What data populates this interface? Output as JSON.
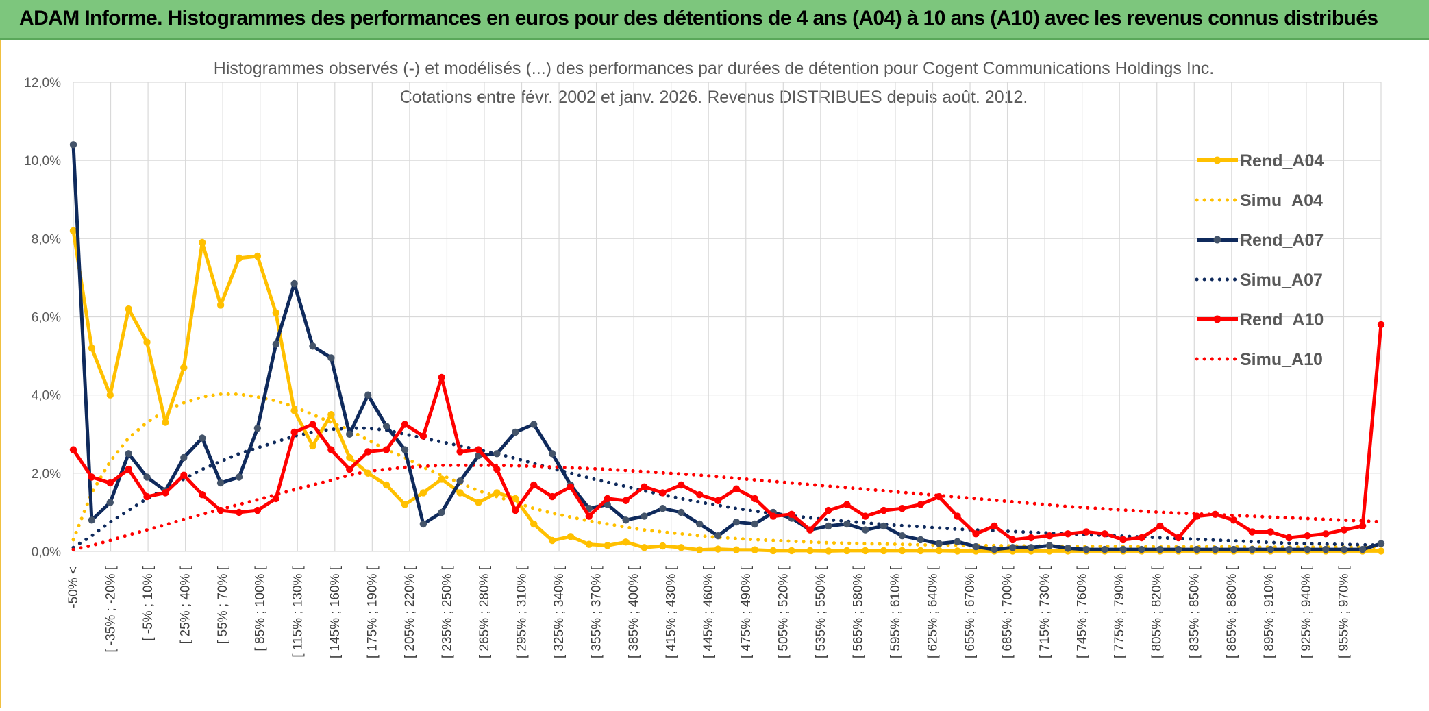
{
  "header": {
    "title": "ADAM Informe. Histogrammes des performances en euros pour des détentions de 4 ans (A04) à 10 ans (A10) avec les revenus connus distribués"
  },
  "chart_data": {
    "type": "line",
    "title": "Histogrammes observés (-) et modélisés (...) des performances par durées de détention pour Cogent Communications Holdings Inc.",
    "subtitle": "Cotations entre févr. 2002 et janv. 2026. Revenus DISTRIBUES depuis août. 2012.",
    "xlabel": "",
    "ylabel": "",
    "ylim": [
      0,
      12
    ],
    "y_ticks": [
      "0,0%",
      "2,0%",
      "4,0%",
      "6,0%",
      "8,0%",
      "10,0%",
      "12,0%"
    ],
    "legend_position": "right",
    "x_labels": [
      "-50% <",
      "[ -35% ; -20% [",
      "[ -5% ; 10% [",
      "[ 25% ; 40% [",
      "[ 55% ; 70% [",
      "[ 85% ; 100% [",
      "[ 115% ; 130% [",
      "[ 145% ; 160% [",
      "[ 175% ; 190% [",
      "[ 205% ; 220% [",
      "[ 235% ; 250% [",
      "[ 265% ; 280% [",
      "[ 295% ; 310% [",
      "[ 325% ; 340% [",
      "[ 355% ; 370% [",
      "[ 385% ; 400% [",
      "[ 415% ; 430% [",
      "[ 445% ; 460% [",
      "[ 475% ; 490% [",
      "[ 505% ; 520% [",
      "[ 535% ; 550% [",
      "[ 565% ; 580% [",
      "[ 595% ; 610% [",
      "[ 625% ; 640% [",
      "[ 655% ; 670% [",
      "[ 685% ; 700% [",
      "[ 715% ; 730% [",
      "[ 745% ; 760% [",
      "[ 775% ; 790% [",
      "[ 805% ; 820% [",
      "[ 835% ; 850% [",
      "[ 865% ; 880% [",
      "[ 895% ; 910% [",
      "[ 925% ; 940% [",
      "[ 955% ; 970% ["
    ],
    "series": [
      {
        "name": "Rend_A04",
        "style": "solid",
        "color": "#ffc000",
        "values": [
          8.2,
          5.2,
          4.0,
          6.2,
          5.35,
          3.3,
          4.7,
          7.9,
          6.3,
          7.5,
          7.55,
          6.1,
          3.6,
          2.7,
          3.5,
          2.4,
          2.0,
          1.7,
          1.2,
          1.5,
          1.85,
          1.5,
          1.25,
          1.5,
          1.35,
          0.7,
          0.28,
          0.38,
          0.18,
          0.15,
          0.24,
          0.1,
          0.14,
          0.1,
          0.04,
          0.06,
          0.04,
          0.04,
          0.02,
          0.02,
          0.02,
          0.01,
          0.02,
          0.02,
          0.02,
          0.02,
          0.02,
          0.02,
          0.01,
          0.01,
          0.01,
          0.01,
          0.01,
          0.01,
          0.01,
          0.01,
          0.01,
          0.01,
          0.01,
          0.01,
          0.01,
          0.01,
          0.01,
          0.01,
          0.01,
          0.01,
          0.01,
          0.01,
          0.01,
          0.01,
          0.01,
          0.01
        ]
      },
      {
        "name": "Simu_A04",
        "style": "dotted",
        "color": "#ffc000",
        "values": [
          0.3,
          1.5,
          2.3,
          2.9,
          3.3,
          3.6,
          3.8,
          3.95,
          4.02,
          4.02,
          3.95,
          3.85,
          3.7,
          3.5,
          3.3,
          3.1,
          2.85,
          2.6,
          2.4,
          2.15,
          1.95,
          1.75,
          1.55,
          1.4,
          1.25,
          1.1,
          0.98,
          0.88,
          0.78,
          0.7,
          0.62,
          0.55,
          0.5,
          0.45,
          0.4,
          0.36,
          0.33,
          0.3,
          0.28,
          0.26,
          0.24,
          0.22,
          0.21,
          0.2,
          0.19,
          0.18,
          0.17,
          0.16,
          0.16,
          0.15,
          0.15,
          0.14,
          0.14,
          0.14,
          0.13,
          0.13,
          0.13,
          0.13,
          0.12,
          0.12,
          0.12,
          0.12,
          0.12,
          0.12,
          0.11,
          0.11,
          0.11,
          0.11,
          0.11,
          0.11,
          0.11,
          0.11
        ]
      },
      {
        "name": "Rend_A07",
        "style": "solid",
        "color": "#0f2a5c",
        "values": [
          10.4,
          0.8,
          1.25,
          2.5,
          1.9,
          1.55,
          2.4,
          2.9,
          1.75,
          1.9,
          3.15,
          5.3,
          6.85,
          5.25,
          4.95,
          3.0,
          4.0,
          3.2,
          2.6,
          0.7,
          1.0,
          1.8,
          2.45,
          2.5,
          3.05,
          3.25,
          2.5,
          1.7,
          1.1,
          1.2,
          0.8,
          0.9,
          1.1,
          1.0,
          0.7,
          0.4,
          0.75,
          0.7,
          1.0,
          0.85,
          0.55,
          0.65,
          0.7,
          0.55,
          0.65,
          0.4,
          0.3,
          0.2,
          0.25,
          0.12,
          0.05,
          0.1,
          0.1,
          0.15,
          0.08,
          0.05,
          0.05,
          0.05,
          0.05,
          0.05,
          0.05,
          0.05,
          0.05,
          0.05,
          0.05,
          0.05,
          0.05,
          0.05,
          0.05,
          0.05,
          0.05,
          0.2
        ]
      },
      {
        "name": "Simu_A07",
        "style": "dotted",
        "color": "#0f2a5c",
        "values": [
          0.1,
          0.4,
          0.75,
          1.05,
          1.35,
          1.6,
          1.85,
          2.1,
          2.3,
          2.5,
          2.65,
          2.8,
          2.95,
          3.05,
          3.12,
          3.15,
          3.15,
          3.1,
          3.0,
          2.9,
          2.8,
          2.7,
          2.6,
          2.5,
          2.38,
          2.25,
          2.12,
          2.0,
          1.88,
          1.77,
          1.66,
          1.55,
          1.45,
          1.35,
          1.26,
          1.18,
          1.1,
          1.03,
          0.97,
          0.91,
          0.86,
          0.81,
          0.77,
          0.73,
          0.69,
          0.66,
          0.63,
          0.6,
          0.57,
          0.55,
          0.53,
          0.51,
          0.49,
          0.47,
          0.45,
          0.43,
          0.41,
          0.39,
          0.37,
          0.35,
          0.33,
          0.31,
          0.29,
          0.27,
          0.25,
          0.23,
          0.21,
          0.2,
          0.19,
          0.18,
          0.17,
          0.16
        ]
      },
      {
        "name": "Rend_A10",
        "style": "solid",
        "color": "#ff0000",
        "values": [
          2.6,
          1.9,
          1.75,
          2.1,
          1.4,
          1.5,
          1.95,
          1.45,
          1.05,
          1.0,
          1.05,
          1.35,
          3.05,
          3.25,
          2.6,
          2.1,
          2.55,
          2.6,
          3.25,
          2.95,
          4.45,
          2.55,
          2.6,
          2.1,
          1.05,
          1.7,
          1.4,
          1.65,
          0.9,
          1.35,
          1.3,
          1.65,
          1.5,
          1.7,
          1.45,
          1.3,
          1.6,
          1.35,
          0.9,
          0.95,
          0.55,
          1.05,
          1.2,
          0.9,
          1.05,
          1.1,
          1.2,
          1.4,
          0.9,
          0.45,
          0.65,
          0.3,
          0.35,
          0.4,
          0.45,
          0.5,
          0.45,
          0.3,
          0.35,
          0.65,
          0.35,
          0.9,
          0.95,
          0.8,
          0.5,
          0.5,
          0.35,
          0.4,
          0.45,
          0.55,
          0.65,
          5.8
        ]
      },
      {
        "name": "Simu_A10",
        "style": "dotted",
        "color": "#ff0000",
        "values": [
          0.05,
          0.15,
          0.28,
          0.42,
          0.55,
          0.68,
          0.82,
          0.95,
          1.08,
          1.2,
          1.32,
          1.45,
          1.58,
          1.7,
          1.82,
          1.95,
          2.05,
          2.1,
          2.15,
          2.18,
          2.2,
          2.2,
          2.2,
          2.2,
          2.19,
          2.18,
          2.16,
          2.14,
          2.12,
          2.1,
          2.07,
          2.04,
          2.01,
          1.98,
          1.95,
          1.91,
          1.87,
          1.83,
          1.79,
          1.75,
          1.71,
          1.67,
          1.63,
          1.59,
          1.55,
          1.51,
          1.47,
          1.43,
          1.39,
          1.35,
          1.31,
          1.27,
          1.23,
          1.19,
          1.15,
          1.12,
          1.09,
          1.06,
          1.03,
          1.0,
          0.98,
          0.96,
          0.94,
          0.92,
          0.9,
          0.88,
          0.86,
          0.84,
          0.82,
          0.8,
          0.78,
          0.76
        ]
      }
    ]
  }
}
